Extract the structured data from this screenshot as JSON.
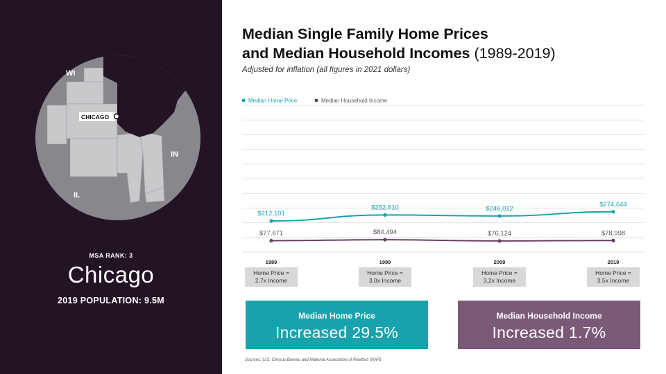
{
  "left_panel": {
    "map": {
      "state_labels": [
        "WI",
        "IN",
        "IL"
      ],
      "city_label": "CHICAGO"
    },
    "msa_rank": "MSA RANK: 3",
    "city": "Chicago",
    "population": "2019 POPULATION: 9.5M"
  },
  "title": {
    "line1": "Median Single Family Home Prices",
    "line2_main": "and Median Household Incomes",
    "line2_years": "(1989-2019)"
  },
  "subtitle": "Adjusted for inflation (all figures in 2021 dollars)",
  "chart_data": {
    "type": "line",
    "x": [
      "1989",
      "1999",
      "2009",
      "2019"
    ],
    "series": [
      {
        "name": "Median Home Price",
        "values": [
          212101,
          252810,
          246012,
          274644
        ],
        "labels": [
          "$212,101",
          "$252,810",
          "$246,012",
          "$274,644"
        ],
        "color": "#17a2ad"
      },
      {
        "name": "Median Household Income",
        "values": [
          77671,
          84494,
          76124,
          78998
        ],
        "labels": [
          "$77,671",
          "$84,494",
          "$76,124",
          "$78,998"
        ],
        "color": "#6b3e64"
      }
    ],
    "ratios": [
      "Home Price =\n2.7x Income",
      "Home Price =\n3.0x Income",
      "Home Price =\n3.2x Income",
      "Home Price =\n3.5x Income"
    ],
    "ylim": [
      0,
      1000000
    ],
    "grid": true,
    "legend": "top-left"
  },
  "summary": {
    "home": {
      "header": "Median Home Price",
      "value": "Increased 29.5%"
    },
    "income": {
      "header": "Median Household Income",
      "value": "Increased 1.7%"
    }
  },
  "sources": "Sources: U.S. Census Bureau and National Association of Realtors (NAR)",
  "colors": {
    "left_bg": "#231424",
    "home": "#17a2ad",
    "income": "#7a5a78",
    "income_line": "#6b3e64",
    "map_circle": "#88878d",
    "map_region": "#c8c9cb",
    "lake": "#231424"
  }
}
